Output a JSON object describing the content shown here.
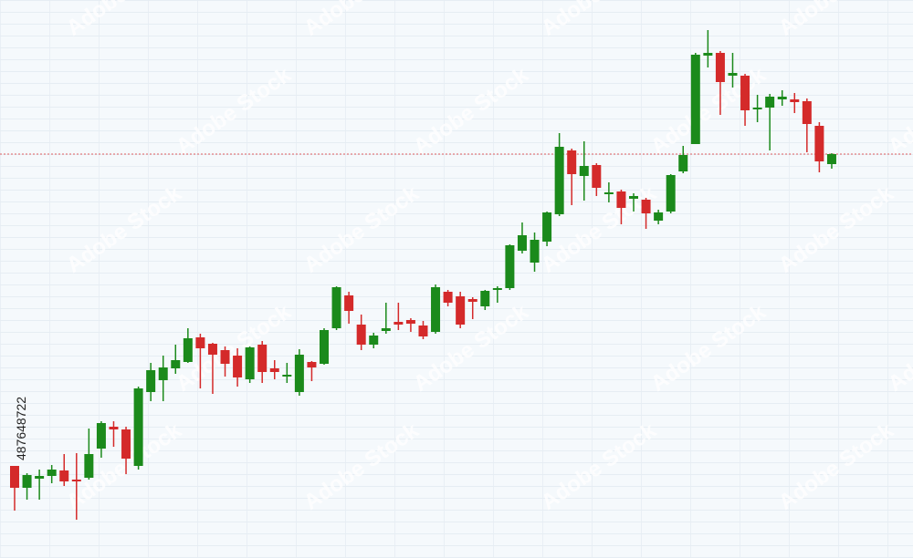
{
  "chart_data": {
    "type": "candlestick",
    "open": [
      101,
      77,
      87,
      90,
      96,
      86,
      88,
      120,
      144,
      141,
      101,
      182,
      195,
      208,
      215,
      242,
      235,
      228,
      222,
      196,
      234,
      208,
      199,
      182,
      215,
      213,
      252,
      288,
      256,
      234,
      249,
      259,
      261,
      255,
      248,
      292,
      287,
      284,
      276,
      294,
      296,
      337,
      324,
      347,
      377,
      447,
      419,
      431,
      399,
      402,
      394,
      393,
      370,
      380,
      424,
      454,
      551,
      554,
      529,
      529,
      492,
      494,
      503,
      503,
      501,
      474,
      432
    ],
    "high": [
      101,
      93,
      97,
      102,
      114,
      115,
      142,
      150,
      150,
      144,
      188,
      214,
      222,
      234,
      252,
      246,
      236,
      232,
      230,
      232,
      238,
      217,
      214,
      229,
      216,
      252,
      298,
      292,
      267,
      247,
      280,
      280,
      263,
      260,
      300,
      294,
      292,
      286,
      294,
      298,
      344,
      368,
      357,
      380,
      466,
      449,
      457,
      433,
      412,
      404,
      400,
      395,
      382,
      421,
      452,
      554,
      579,
      556,
      554,
      531,
      508,
      509,
      513,
      510,
      504,
      478,
      444
    ],
    "low": [
      52,
      64,
      64,
      82,
      79,
      42,
      86,
      110,
      122,
      92,
      97,
      172,
      172,
      202,
      214,
      186,
      180,
      199,
      188,
      192,
      192,
      196,
      192,
      178,
      194,
      212,
      250,
      257,
      228,
      230,
      246,
      250,
      248,
      240,
      246,
      276,
      252,
      262,
      272,
      280,
      294,
      334,
      314,
      342,
      375,
      387,
      392,
      397,
      390,
      366,
      380,
      361,
      366,
      378,
      422,
      454,
      538,
      486,
      516,
      474,
      478,
      447,
      496,
      488,
      445,
      423,
      427
    ],
    "close": [
      77,
      91,
      90,
      97,
      84,
      84,
      114,
      148,
      141,
      109,
      186,
      206,
      209,
      217,
      241,
      230,
      223,
      213,
      198,
      231,
      204,
      204,
      201,
      223,
      209,
      250,
      297,
      271,
      234,
      244,
      252,
      256,
      257,
      243,
      297,
      280,
      256,
      281,
      293,
      296,
      343,
      354,
      349,
      379,
      451,
      421,
      430,
      406,
      401,
      384,
      397,
      378,
      379,
      420,
      442,
      552,
      554,
      522,
      532,
      491,
      494,
      506,
      506,
      500,
      476,
      435,
      443
    ],
    "up_color": "#1b8a1b",
    "down_color": "#d42a2a",
    "price_line": 443,
    "price_line_color": "#e06060",
    "ylim": [
      0,
      612
    ],
    "grid": true,
    "stock_id": "487648722",
    "watermark": "Adobe Stock"
  }
}
